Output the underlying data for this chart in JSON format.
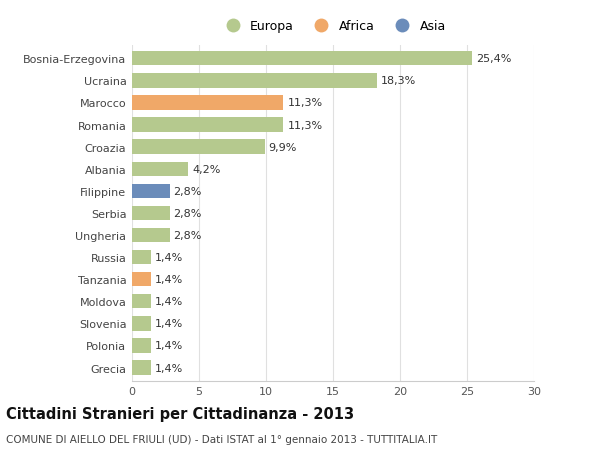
{
  "categories": [
    "Bosnia-Erzegovina",
    "Ucraina",
    "Marocco",
    "Romania",
    "Croazia",
    "Albania",
    "Filippine",
    "Serbia",
    "Ungheria",
    "Russia",
    "Tanzania",
    "Moldova",
    "Slovenia",
    "Polonia",
    "Grecia"
  ],
  "values": [
    25.4,
    18.3,
    11.3,
    11.3,
    9.9,
    4.2,
    2.8,
    2.8,
    2.8,
    1.4,
    1.4,
    1.4,
    1.4,
    1.4,
    1.4
  ],
  "labels": [
    "25,4%",
    "18,3%",
    "11,3%",
    "11,3%",
    "9,9%",
    "4,2%",
    "2,8%",
    "2,8%",
    "2,8%",
    "1,4%",
    "1,4%",
    "1,4%",
    "1,4%",
    "1,4%",
    "1,4%"
  ],
  "continents": [
    "Europa",
    "Europa",
    "Africa",
    "Europa",
    "Europa",
    "Europa",
    "Asia",
    "Europa",
    "Europa",
    "Europa",
    "Africa",
    "Europa",
    "Europa",
    "Europa",
    "Europa"
  ],
  "colors": {
    "Europa": "#b5c98e",
    "Africa": "#f0a868",
    "Asia": "#6b8cba"
  },
  "legend_items": [
    "Europa",
    "Africa",
    "Asia"
  ],
  "legend_colors": [
    "#b5c98e",
    "#f0a868",
    "#6b8cba"
  ],
  "title": "Cittadini Stranieri per Cittadinanza - 2013",
  "subtitle": "COMUNE DI AIELLO DEL FRIULI (UD) - Dati ISTAT al 1° gennaio 2013 - TUTTITALIA.IT",
  "xlim": [
    0,
    30
  ],
  "xticks": [
    0,
    5,
    10,
    15,
    20,
    25,
    30
  ],
  "background_color": "#ffffff",
  "grid_color": "#e0e0e0",
  "bar_height": 0.65,
  "label_fontsize": 8.0,
  "tick_fontsize": 8.0,
  "title_fontsize": 10.5,
  "subtitle_fontsize": 7.5
}
